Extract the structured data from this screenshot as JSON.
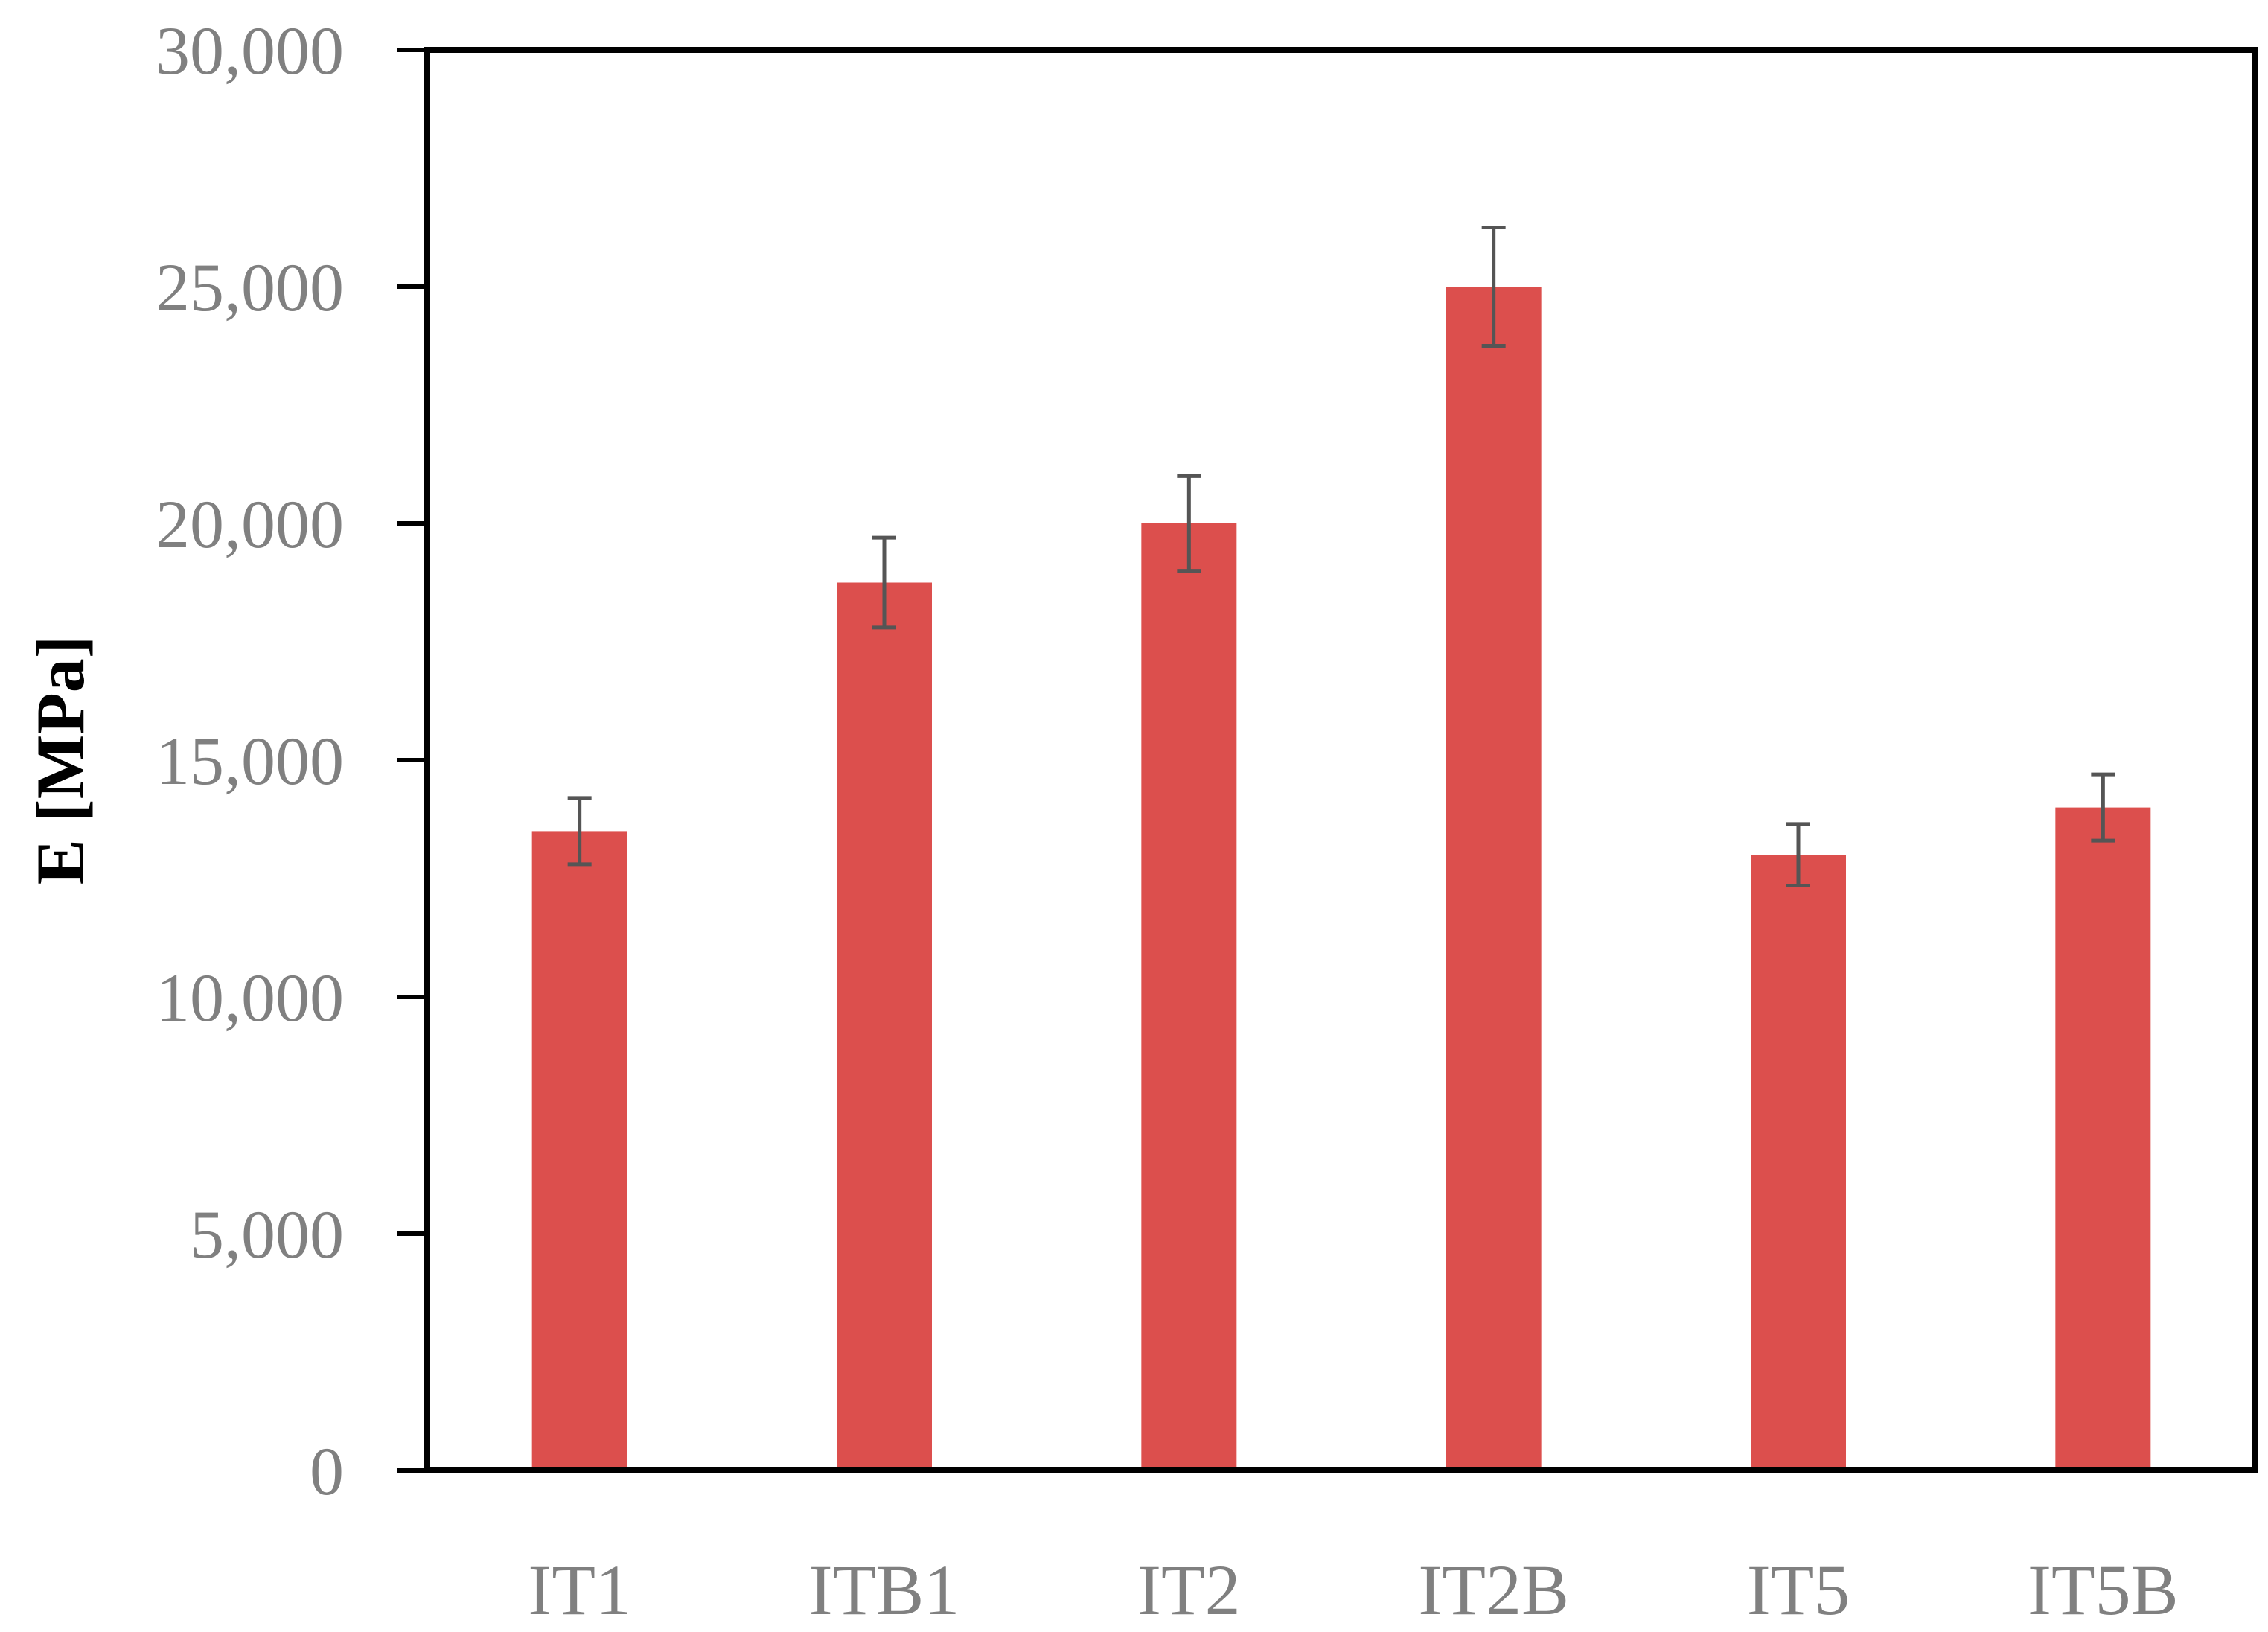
{
  "chart_data": {
    "type": "bar",
    "title": "",
    "xlabel": "",
    "ylabel": "E [MPa]",
    "categories": [
      "IT1",
      "ITB1",
      "IT2",
      "IT2B",
      "IT5",
      "IT5B"
    ],
    "values": [
      13500,
      18750,
      20000,
      25000,
      13000,
      14000
    ],
    "error_low": [
      12800,
      17800,
      19000,
      23750,
      12350,
      13300
    ],
    "error_high": [
      14200,
      19700,
      21000,
      26250,
      13650,
      14700
    ],
    "ylim": [
      0,
      30000
    ],
    "yticks": [
      0,
      5000,
      10000,
      15000,
      20000,
      25000,
      30000
    ],
    "ytick_labels": [
      "0",
      "5,000",
      "10,000",
      "15,000",
      "20,000",
      "25,000",
      "30,000"
    ],
    "grid": false,
    "legend": "none",
    "colors": {
      "bar": "#dc4f4d",
      "error_bar": "#555555",
      "axis": "#000000",
      "tick_text": "#808080"
    }
  }
}
